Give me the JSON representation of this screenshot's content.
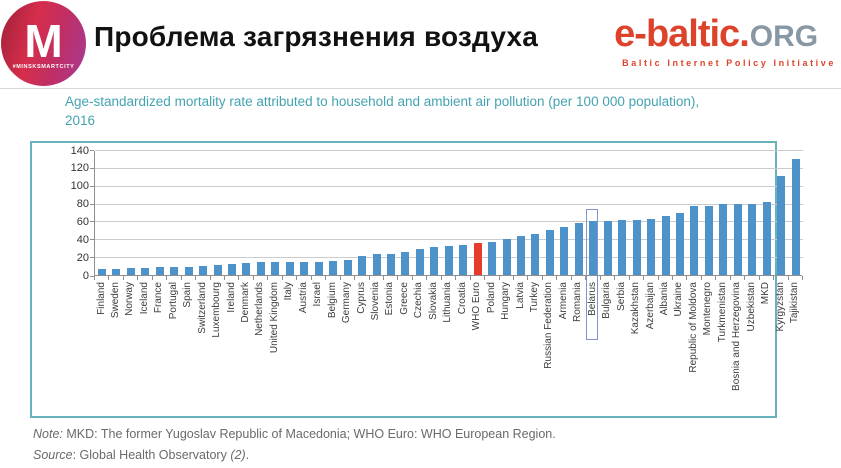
{
  "header": {
    "logo": {
      "letter": "M",
      "tagline": "#MINSKSMARTCITY"
    },
    "title": "Проблема загрязнения воздуха",
    "brand": {
      "name": "e-baltic",
      "dot": ".",
      "tld": "ORG",
      "tagline": "Baltic Internet Policy Initiative"
    }
  },
  "subtitle": {
    "line1": "Age-standardized mortality rate attributed to household and ambient air pollution (per 100 000 population),",
    "line2": "2016"
  },
  "chart_data": {
    "type": "bar",
    "title": "Age-standardized mortality rate attributed to household and ambient air pollution (per 100 000 population), 2016",
    "categories": [
      "Finland",
      "Sweden",
      "Norway",
      "Iceland",
      "France",
      "Portugal",
      "Spain",
      "Switzerland",
      "Luxembourg",
      "Ireland",
      "Denmark",
      "Netherlands",
      "United Kingdom",
      "Italy",
      "Austria",
      "Israel",
      "Belgium",
      "Germany",
      "Cyprus",
      "Slovenia",
      "Estonia",
      "Greece",
      "Czechia",
      "Slovakia",
      "Lithuania",
      "Croatia",
      "WHO Euro",
      "Poland",
      "Hungary",
      "Latvia",
      "Turkey",
      "Russian Federation",
      "Armenia",
      "Romania",
      "Belarus",
      "Bulgaria",
      "Serbia",
      "Kazakhstan",
      "Azerbaijan",
      "Albania",
      "Ukraine",
      "Republic of Moldova",
      "Montenegro",
      "Turkmenistan",
      "Bosnia and Herzegovina",
      "Uzbekistan",
      "MKD",
      "Kyrgyzstan",
      "Tajikistan"
    ],
    "values": [
      7,
      7,
      8,
      8,
      9,
      9,
      9,
      10,
      11,
      12,
      13,
      14,
      14,
      15,
      15,
      15,
      16,
      17,
      21,
      23,
      24,
      26,
      29,
      31,
      33,
      34,
      36,
      37,
      40,
      44,
      46,
      50,
      54,
      58,
      60,
      61,
      62,
      62,
      63,
      66,
      69,
      77,
      77,
      79,
      80,
      80,
      82,
      111,
      130
    ],
    "xlabel": "",
    "ylabel": "",
    "ylim": [
      0,
      140
    ],
    "yticks": [
      0,
      20,
      40,
      60,
      80,
      100,
      120,
      140
    ],
    "grid": true,
    "legend": "none",
    "bar_color": "#4e92ca",
    "annotations": {
      "red_bar_label": "WHO Euro",
      "red_bar_index": 26,
      "red_color": "#e63c2c",
      "boxed_label": "Belarus",
      "boxed_index": 34,
      "box_color": "#7d95cc"
    }
  },
  "notes": {
    "note_label": "Note:",
    "note_text": " MKD: The former Yugoslav Republic of Macedonia; WHO Euro: WHO European Region.",
    "source_label": "Source",
    "source_text": ": Global Health Observatory ",
    "source_ref": "(2)",
    "source_suffix": "."
  }
}
